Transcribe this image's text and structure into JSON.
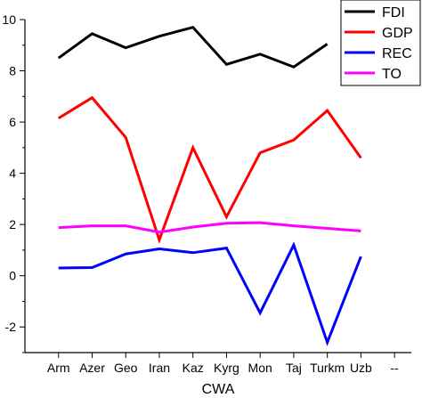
{
  "chart_data": {
    "type": "line",
    "xlabel": "CWA",
    "ylabel": "",
    "categories": [
      "Arm",
      "Azer",
      "Geo",
      "Iran",
      "Kaz",
      "Kyrg",
      "Mon",
      "Taj",
      "Turkm",
      "Uzb",
      "--"
    ],
    "ylim": [
      -3,
      10
    ],
    "yticks": [
      -2,
      0,
      2,
      4,
      6,
      8,
      10
    ],
    "grid": false,
    "legend_position": "top-right",
    "series": [
      {
        "name": "FDI",
        "color": "#000000",
        "values": [
          8.5,
          9.45,
          8.9,
          9.35,
          9.7,
          8.25,
          8.65,
          8.15,
          9.05,
          null,
          null
        ]
      },
      {
        "name": "GDP",
        "color": "#ff0000",
        "values": [
          6.15,
          6.95,
          5.4,
          1.4,
          5.0,
          2.3,
          4.8,
          5.3,
          6.45,
          4.6,
          null
        ]
      },
      {
        "name": "REC",
        "color": "#0000ff",
        "values": [
          0.3,
          0.32,
          0.85,
          1.05,
          0.9,
          1.08,
          -1.45,
          1.2,
          -2.6,
          0.75,
          null
        ]
      },
      {
        "name": "TO",
        "color": "#ff00ff",
        "values": [
          1.88,
          1.95,
          1.95,
          1.7,
          1.9,
          2.05,
          2.07,
          1.95,
          1.85,
          1.75,
          null
        ]
      }
    ]
  }
}
